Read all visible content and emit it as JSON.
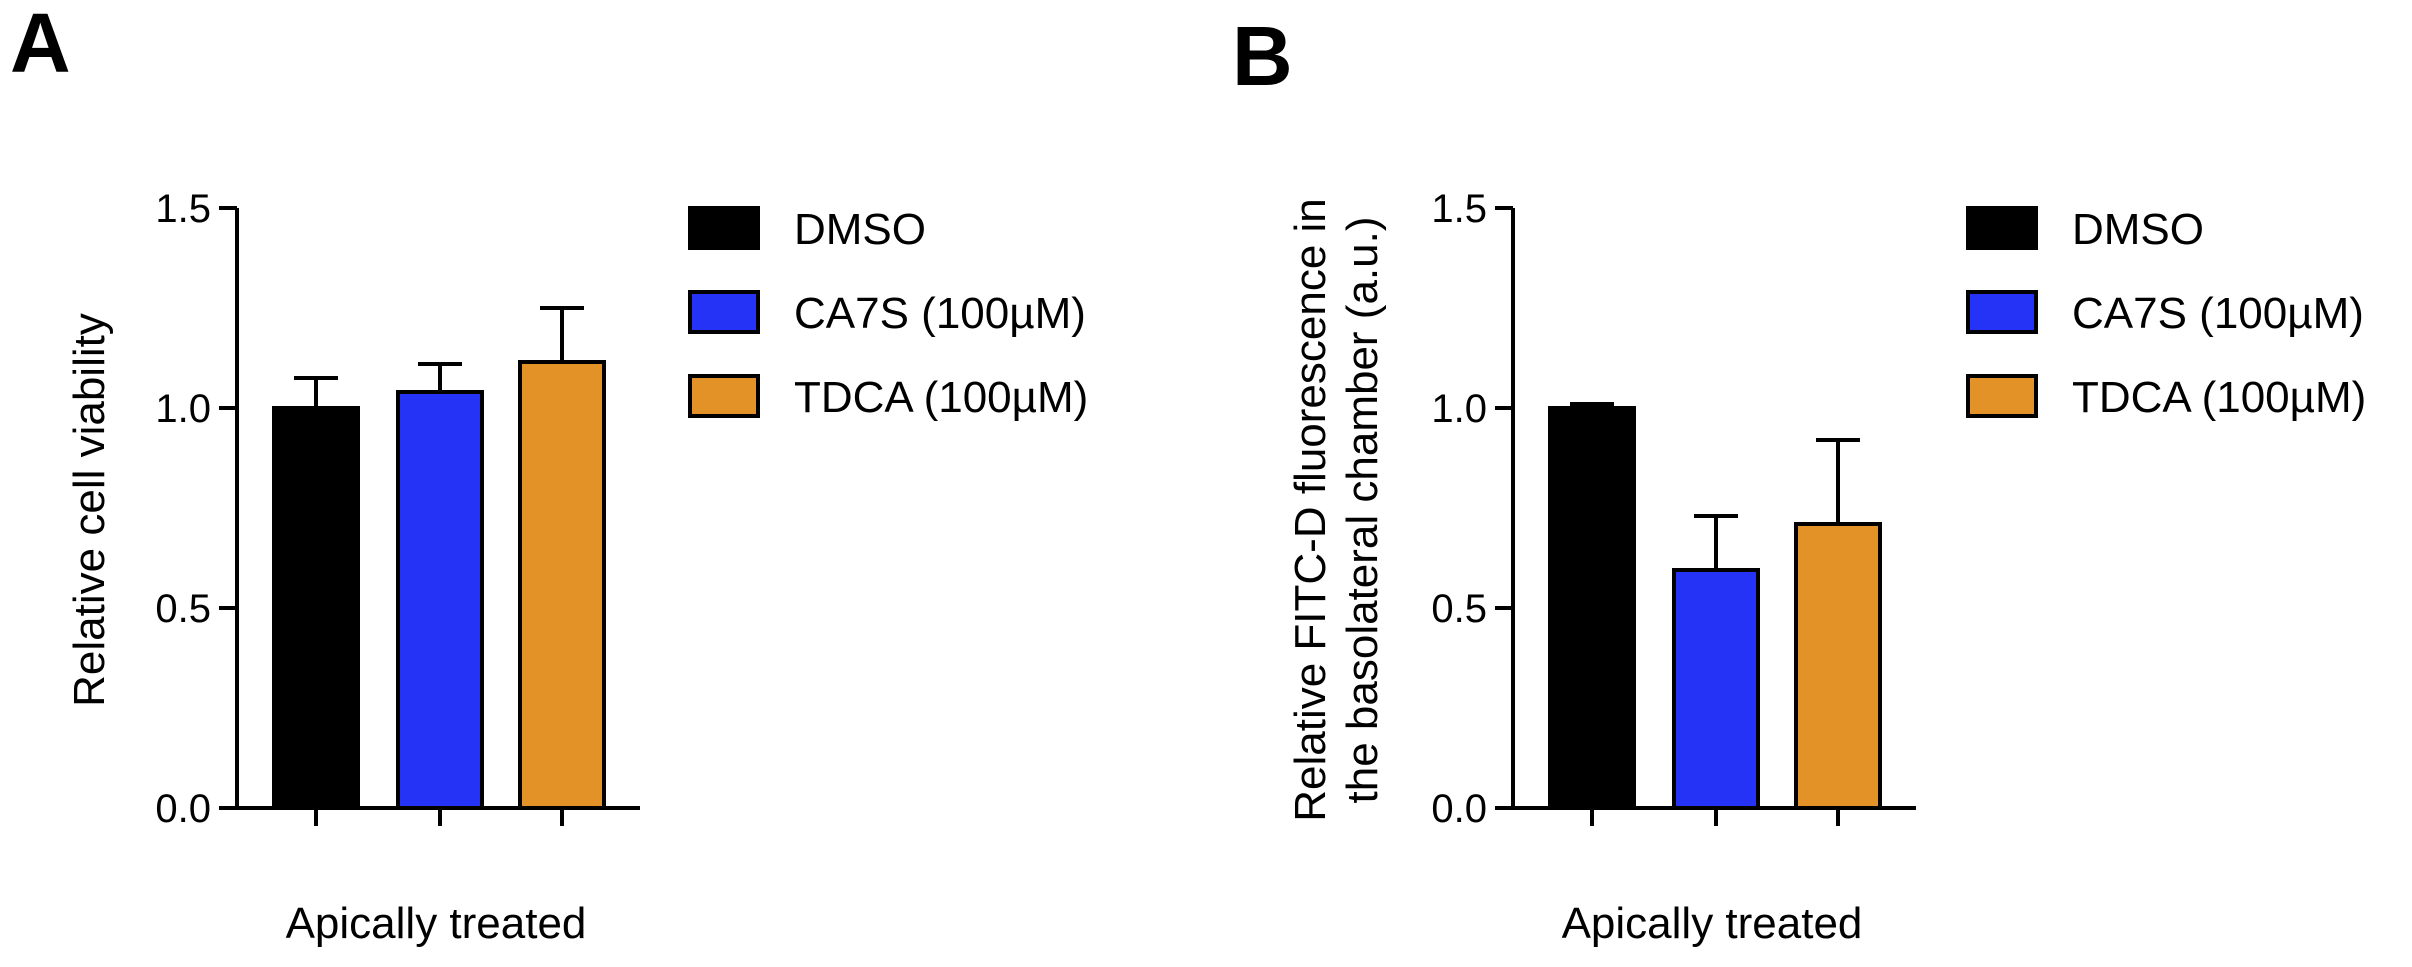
{
  "chart_data": [
    {
      "panel": "A",
      "type": "bar",
      "title": "",
      "categories": [
        "DMSO",
        "CA7S (100µM)",
        "TDCA (100µM)"
      ],
      "values": [
        1.0,
        1.04,
        1.115
      ],
      "errors": [
        0.075,
        0.07,
        0.135
      ],
      "colors": [
        "#000000",
        "#2433f5",
        "#e39227"
      ],
      "xlabel": "Apically treated",
      "ylabel": "Relative cell viability",
      "ylim": [
        0,
        1.5
      ],
      "yticks": [
        "0.0",
        "0.5",
        "1.0",
        "1.5"
      ],
      "legend": [
        "DMSO",
        "CA7S (100µM)",
        "TDCA (100µM)"
      ],
      "legend_position": "right",
      "grid": false
    },
    {
      "panel": "B",
      "type": "bar",
      "title": "",
      "categories": [
        "DMSO",
        "CA7S (100µM)",
        "TDCA (100µM)"
      ],
      "values": [
        1.0,
        0.595,
        0.71
      ],
      "errors": [
        0.01,
        0.135,
        0.21
      ],
      "colors": [
        "#000000",
        "#2433f5",
        "#e39227"
      ],
      "xlabel": "Apically treated",
      "ylabel_lines": [
        "Relative FITC-D fluorescence in",
        "the basolateral chamber (a.u.)"
      ],
      "ylim": [
        0,
        1.5
      ],
      "yticks": [
        "0.0",
        "0.5",
        "1.0",
        "1.5"
      ],
      "legend": [
        "DMSO",
        "CA7S (100µM)",
        "TDCA (100µM)"
      ],
      "legend_position": "right",
      "grid": false
    }
  ]
}
